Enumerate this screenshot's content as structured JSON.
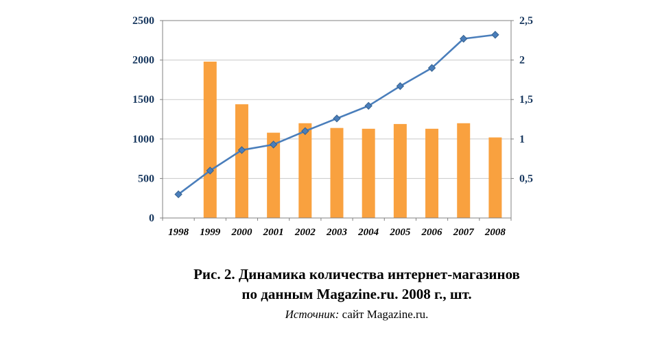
{
  "chart_data": {
    "type": "bar",
    "combo": "bar+line",
    "categories": [
      "1998",
      "1999",
      "2000",
      "2001",
      "2002",
      "2003",
      "2004",
      "2005",
      "2006",
      "2007",
      "2008"
    ],
    "series": [
      {
        "name": "internet-shops-count",
        "type": "bar",
        "axis": "left",
        "color": "#F9A13F",
        "values": [
          null,
          1980,
          1440,
          1080,
          1200,
          1140,
          1130,
          1190,
          1130,
          1200,
          1020
        ]
      },
      {
        "name": "trend-line",
        "type": "line",
        "axis": "right",
        "color": "#4A7EBB",
        "marker": "diamond",
        "values": [
          0.3,
          0.6,
          0.86,
          0.93,
          1.1,
          1.26,
          1.42,
          1.67,
          1.9,
          2.27,
          2.32
        ]
      }
    ],
    "left_axis": {
      "min": 0,
      "max": 2500,
      "ticks": [
        0,
        500,
        1000,
        1500,
        2000,
        2500
      ],
      "labels": [
        "0",
        "500",
        "1000",
        "1500",
        "2000",
        "2500"
      ]
    },
    "right_axis": {
      "min": 0,
      "max": 2.5,
      "ticks": [
        0.5,
        1,
        1.5,
        2,
        2.5
      ],
      "labels": [
        "0,5",
        "1",
        "1,5",
        "2",
        "2,5"
      ]
    },
    "grid": true,
    "legend": "none",
    "title": "",
    "xlabel": "",
    "ylabel": "",
    "colors": {
      "bar": "#F9A13F",
      "line": "#4A7EBB",
      "marker_stroke": "#35618E",
      "grid": "#C9C9C9",
      "axis_line": "#808080",
      "tick_text": "#17375E",
      "year_text": "#000000"
    }
  },
  "caption": {
    "line1": "Рис. 2. Динамика количества интернет-магазинов",
    "line2": "по данным Magazine.ru. 2008 г., шт.",
    "source_label": "Источник:",
    "source_text": " сайт Magazine.ru."
  }
}
